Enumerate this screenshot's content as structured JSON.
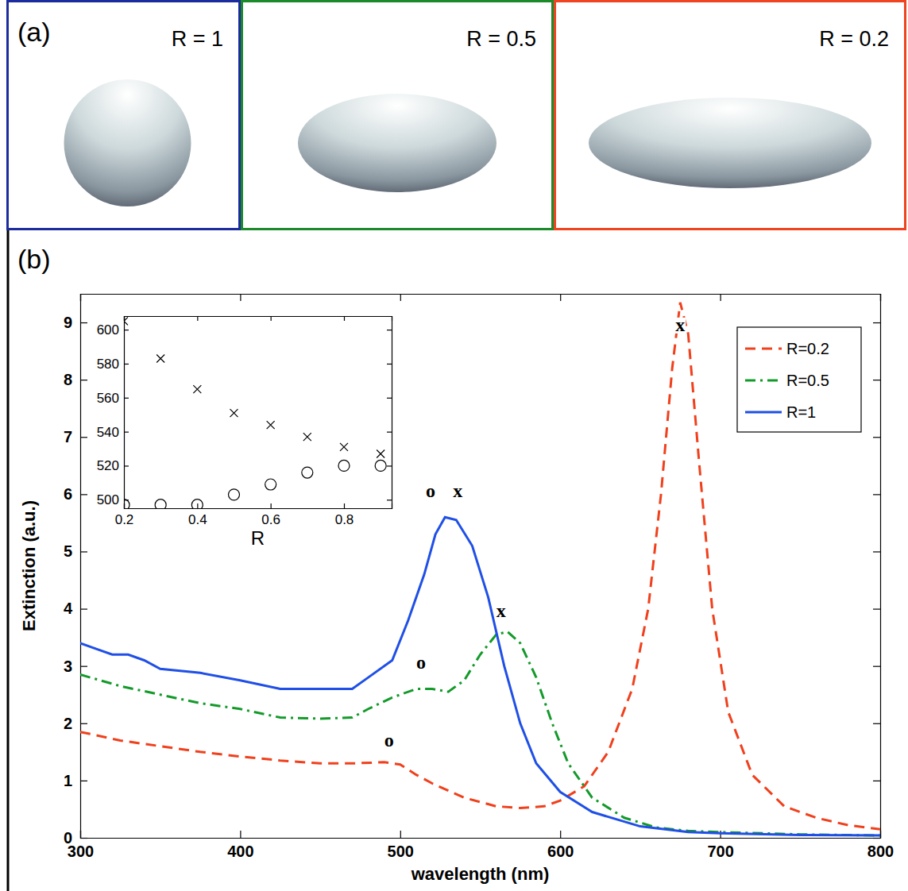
{
  "panel_a": {
    "label": "(a)",
    "shapes": [
      {
        "label": "R = 1",
        "color": "#1c2c9c"
      },
      {
        "label": "R = 0.5",
        "color": "#1a8a2a"
      },
      {
        "label": "R = 0.2",
        "color": "#ee4420"
      }
    ]
  },
  "panel_b": {
    "label": "(b)"
  },
  "chart_data": [
    {
      "type": "line",
      "xlabel": "wavelength (nm)",
      "ylabel": "Extinction (a.u.)",
      "xlim": [
        300,
        800
      ],
      "ylim": [
        0,
        9.5
      ],
      "xticks": [
        300,
        400,
        500,
        600,
        700,
        800
      ],
      "yticks": [
        0,
        1,
        2,
        3,
        4,
        5,
        6,
        7,
        8,
        9
      ],
      "grid": false,
      "legend": "upper right",
      "series": [
        {
          "name": "R=0.2",
          "color": "#f0401c",
          "line_style": "dashed",
          "x": [
            300,
            325,
            350,
            375,
            400,
            425,
            450,
            470,
            490,
            500,
            510,
            520,
            540,
            560,
            575,
            590,
            600,
            615,
            630,
            645,
            655,
            663,
            670,
            675,
            680,
            687,
            695,
            705,
            720,
            740,
            760,
            780,
            800
          ],
          "values": [
            1.85,
            1.7,
            1.6,
            1.5,
            1.42,
            1.35,
            1.3,
            1.3,
            1.32,
            1.28,
            1.1,
            0.95,
            0.7,
            0.55,
            0.52,
            0.55,
            0.65,
            0.9,
            1.5,
            2.6,
            4.0,
            6.0,
            8.2,
            9.35,
            8.8,
            6.5,
            4.0,
            2.2,
            1.1,
            0.55,
            0.35,
            0.22,
            0.15
          ]
        },
        {
          "name": "R=0.5",
          "color": "#139a2a",
          "line_style": "dashdot",
          "x": [
            300,
            325,
            350,
            375,
            400,
            425,
            450,
            470,
            480,
            495,
            510,
            520,
            530,
            540,
            550,
            560,
            567,
            575,
            585,
            595,
            605,
            620,
            640,
            660,
            680,
            700,
            750,
            800
          ],
          "values": [
            2.85,
            2.65,
            2.5,
            2.35,
            2.25,
            2.1,
            2.08,
            2.1,
            2.25,
            2.45,
            2.6,
            2.6,
            2.55,
            2.75,
            3.2,
            3.55,
            3.6,
            3.4,
            2.8,
            2.0,
            1.3,
            0.7,
            0.35,
            0.18,
            0.12,
            0.1,
            0.06,
            0.04
          ]
        },
        {
          "name": "R=1",
          "color": "#1f4fe6",
          "line_style": "solid",
          "x": [
            300,
            310,
            320,
            330,
            340,
            350,
            375,
            400,
            425,
            450,
            470,
            480,
            495,
            505,
            515,
            522,
            528,
            535,
            545,
            555,
            565,
            575,
            585,
            600,
            620,
            650,
            680,
            700,
            750,
            800
          ],
          "values": [
            3.4,
            3.3,
            3.2,
            3.2,
            3.1,
            2.95,
            2.88,
            2.75,
            2.6,
            2.6,
            2.6,
            2.8,
            3.1,
            3.8,
            4.6,
            5.3,
            5.6,
            5.55,
            5.1,
            4.2,
            3.0,
            2.0,
            1.3,
            0.8,
            0.45,
            0.2,
            0.1,
            0.08,
            0.05,
            0.04
          ]
        }
      ],
      "annotations": [
        {
          "text": "o",
          "x": 519,
          "y": 5.95
        },
        {
          "text": "x",
          "x": 536,
          "y": 5.95
        },
        {
          "text": "o",
          "x": 513,
          "y": 2.95
        },
        {
          "text": "x",
          "x": 563,
          "y": 3.85
        },
        {
          "text": "o",
          "x": 493,
          "y": 1.6
        },
        {
          "text": "x",
          "x": 675,
          "y": 8.85
        }
      ]
    },
    {
      "type": "scatter",
      "xlabel": "R",
      "xlim": [
        0.2,
        0.93
      ],
      "ylim": [
        495,
        608
      ],
      "xticks": [
        0.2,
        0.4,
        0.6,
        0.8
      ],
      "yticks": [
        500,
        520,
        540,
        560,
        580,
        600
      ],
      "grid": false,
      "x": [
        0.2,
        0.3,
        0.4,
        0.5,
        0.6,
        0.7,
        0.8,
        0.9
      ],
      "series": [
        {
          "marker": "x",
          "color": "#000000",
          "values": [
            605,
            583,
            565,
            551,
            544,
            537,
            531,
            527
          ]
        },
        {
          "marker": "o",
          "color": "#000000",
          "values": [
            497,
            497,
            497,
            503,
            509,
            516,
            520,
            520
          ]
        }
      ]
    }
  ]
}
